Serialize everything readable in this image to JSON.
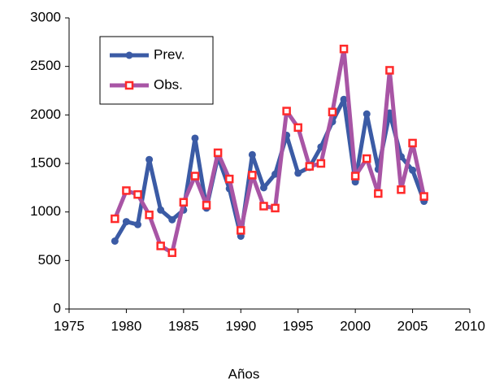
{
  "chart_data": {
    "type": "line",
    "x_label": "Años",
    "x": [
      1979,
      1980,
      1981,
      1982,
      1983,
      1984,
      1985,
      1986,
      1987,
      1988,
      1989,
      1990,
      1991,
      1992,
      1993,
      1994,
      1995,
      1996,
      1997,
      1998,
      1999,
      2000,
      2001,
      2002,
      2003,
      2004,
      2005,
      2006
    ],
    "series": [
      {
        "name": "Prev.",
        "color": "#3b5ba5",
        "marker": "circle",
        "marker_color": "#3b5ba5",
        "values": [
          700,
          900,
          870,
          1540,
          1020,
          920,
          1020,
          1760,
          1040,
          1570,
          1240,
          750,
          1590,
          1250,
          1390,
          1790,
          1400,
          1460,
          1670,
          1930,
          2160,
          1310,
          2010,
          1440,
          2020,
          1570,
          1430,
          1110
        ]
      },
      {
        "name": "Obs.",
        "color": "#a855a5",
        "marker": "square",
        "marker_color": "#ff2a2a",
        "values": [
          930,
          1220,
          1180,
          970,
          650,
          580,
          1100,
          1370,
          1070,
          1610,
          1340,
          810,
          1380,
          1060,
          1040,
          2040,
          1870,
          1470,
          1500,
          2030,
          2680,
          1370,
          1550,
          1190,
          2460,
          1230,
          1710,
          1160
        ]
      }
    ],
    "xlim": [
      1975,
      2010
    ],
    "xticks": [
      1975,
      1980,
      1985,
      1990,
      1995,
      2000,
      2005,
      2010
    ],
    "ylim": [
      0,
      3000
    ],
    "yticks": [
      0,
      500,
      1000,
      1500,
      2000,
      2500,
      3000
    ],
    "grid": false,
    "legend": "upper left"
  }
}
